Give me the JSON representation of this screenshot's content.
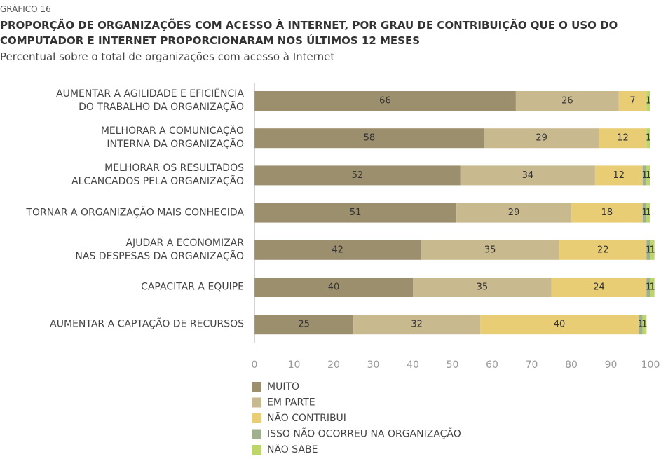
{
  "chart_data": {
    "type": "stacked-bar-horizontal",
    "kicker": "GRÁFICO 16",
    "title": "PROPORÇÃO DE ORGANIZAÇÕES COM ACESSO À INTERNET, POR GRAU DE CONTRIBUIÇÃO QUE O USO DO COMPUTADOR E INTERNET PROPORCIONARAM NOS ÚLTIMOS 12 MESES",
    "subtitle": "Percentual sobre o total de organizações com acesso à Internet",
    "categories": [
      "AUMENTAR A AGILIDADE E EFICIÊNCIA\nDO TRABALHO DA ORGANIZAÇÃO",
      "MELHORAR A COMUNICAÇÃO\nINTERNA DA ORGANIZAÇÃO",
      "MELHORAR OS RESULTADOS\nALCANÇADOS PELA ORGANIZAÇÃO",
      "TORNAR A ORGANIZAÇÃO MAIS CONHECIDA",
      "AJUDAR A ECONOMIZAR\nNAS DESPESAS DA ORGANIZAÇÃO",
      "CAPACITAR A EQUIPE",
      "AUMENTAR A CAPTAÇÃO DE RECURSOS"
    ],
    "series": [
      {
        "name": "MUITO",
        "color": "#9c8f6e",
        "values": [
          66,
          58,
          52,
          51,
          42,
          40,
          25
        ]
      },
      {
        "name": "EM PARTE",
        "color": "#c9b98f",
        "values": [
          26,
          29,
          34,
          29,
          35,
          35,
          32
        ]
      },
      {
        "name": "NÃO CONTRIBUI",
        "color": "#e9cd75",
        "values": [
          7,
          12,
          12,
          18,
          22,
          24,
          40
        ]
      },
      {
        "name": "ISSO NÃO OCORREU NA ORGANIZAÇÃO",
        "color": "#9fb08f",
        "values": [
          null,
          null,
          1,
          1,
          1,
          1,
          1
        ]
      },
      {
        "name": "NÃO SABE",
        "color": "#bcd66a",
        "values": [
          1,
          1,
          1,
          1,
          1,
          1,
          1
        ]
      }
    ],
    "xlim": [
      0,
      100
    ],
    "xticks": [
      0,
      10,
      20,
      30,
      40,
      50,
      60,
      70,
      80,
      90,
      100
    ]
  }
}
